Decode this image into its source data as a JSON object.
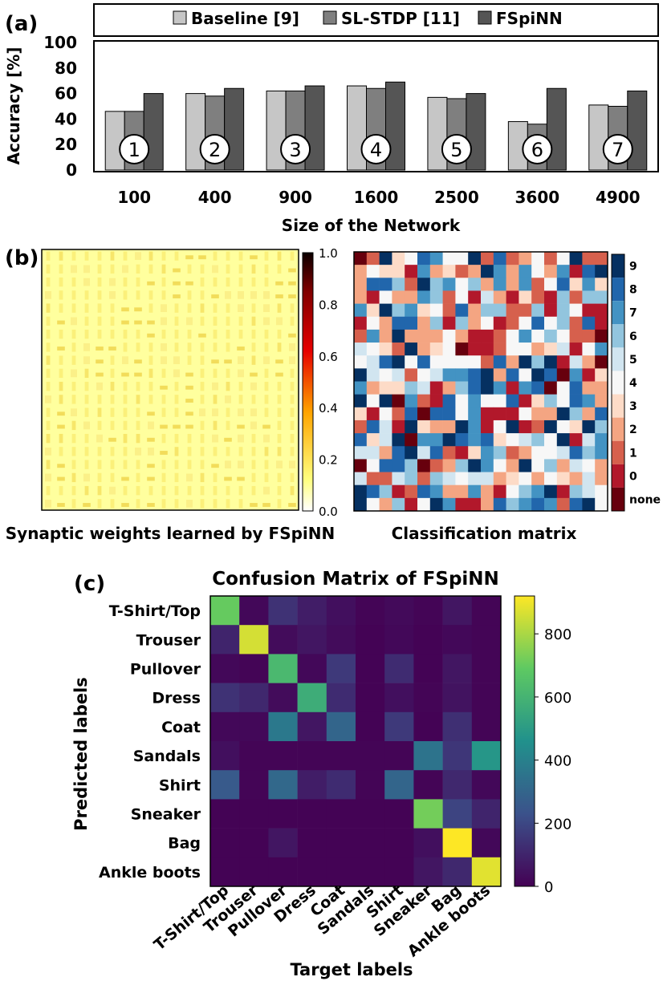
{
  "panel_labels": {
    "a": "(a)",
    "b": "(b)",
    "c": "(c)"
  },
  "legend": [
    {
      "label": "Baseline [9]",
      "color": "#c6c6c6"
    },
    {
      "label": "SL-STDP [11]",
      "color": "#7f7f7f"
    },
    {
      "label": "FSpiNN",
      "color": "#555555"
    }
  ],
  "chart_data": [
    {
      "type": "bar",
      "id": "accuracy",
      "title": "",
      "xlabel": "Size of the Network",
      "ylabel": "Accuracy [%]",
      "ylim": [
        0,
        100
      ],
      "yticks": [
        "0",
        "20",
        "40",
        "60",
        "80",
        "100"
      ],
      "categories": [
        "100",
        "400",
        "900",
        "1600",
        "2500",
        "3600",
        "4900"
      ],
      "markers": [
        "1",
        "2",
        "3",
        "4",
        "5",
        "6",
        "7"
      ],
      "series": [
        {
          "name": "Baseline [9]",
          "values": [
            46,
            60,
            62,
            66,
            57,
            38,
            51
          ]
        },
        {
          "name": "SL-STDP [11]",
          "values": [
            46,
            58,
            62,
            64,
            56,
            36,
            50
          ]
        },
        {
          "name": "FSpiNN",
          "values": [
            60,
            64,
            66,
            69,
            60,
            64,
            62
          ]
        }
      ]
    },
    {
      "type": "heatmap",
      "id": "synaptic-weights",
      "title": "Synaptic weights learned by FSpiNN",
      "colorbar_ticks": [
        "0.0",
        "0.2",
        "0.4",
        "0.6",
        "0.8",
        "1.0"
      ],
      "vlim": [
        0,
        1
      ],
      "grid_size": [
        20,
        20
      ],
      "base_value": 0.1
    },
    {
      "type": "heatmap",
      "id": "classification-matrix",
      "title": "Classification matrix",
      "colorbar_ticks": [
        "9",
        "8",
        "7",
        "6",
        "5",
        "4",
        "3",
        "2",
        "1",
        "0",
        "none"
      ],
      "grid_size": [
        20,
        20
      ],
      "palette": [
        "#67000d",
        "#b2182b",
        "#d6604d",
        "#f4a582",
        "#fddbc7",
        "#f7f7f7",
        "#d1e5f0",
        "#92c5de",
        "#4393c3",
        "#2166ac",
        "#053061"
      ]
    },
    {
      "type": "heatmap",
      "id": "confusion-matrix",
      "title": "Confusion Matrix of FSpiNN",
      "xlabel": "Target labels",
      "ylabel": "Predicted labels",
      "labels": [
        "T-Shirt/Top",
        "Trouser",
        "Pullover",
        "Dress",
        "Coat",
        "Sandals",
        "Shirt",
        "Sneaker",
        "Bag",
        "Ankle boots"
      ],
      "vlim": [
        0,
        920
      ],
      "colorbar_ticks": [
        "0",
        "200",
        "400",
        "600",
        "800"
      ],
      "matrix": [
        [
          700,
          20,
          140,
          80,
          40,
          10,
          25,
          10,
          60,
          10
        ],
        [
          100,
          860,
          30,
          60,
          30,
          5,
          20,
          5,
          20,
          10
        ],
        [
          20,
          10,
          620,
          20,
          160,
          5,
          120,
          5,
          60,
          10
        ],
        [
          140,
          110,
          30,
          570,
          120,
          5,
          40,
          10,
          50,
          10
        ],
        [
          20,
          20,
          370,
          60,
          300,
          5,
          160,
          5,
          130,
          10
        ],
        [
          40,
          10,
          10,
          10,
          10,
          10,
          10,
          350,
          150,
          480
        ],
        [
          260,
          10,
          310,
          80,
          120,
          10,
          300,
          10,
          110,
          20
        ],
        [
          5,
          5,
          5,
          5,
          5,
          5,
          5,
          720,
          190,
          100
        ],
        [
          5,
          5,
          60,
          5,
          5,
          5,
          5,
          40,
          920,
          20
        ],
        [
          5,
          5,
          5,
          5,
          5,
          5,
          5,
          60,
          110,
          880
        ]
      ]
    }
  ]
}
